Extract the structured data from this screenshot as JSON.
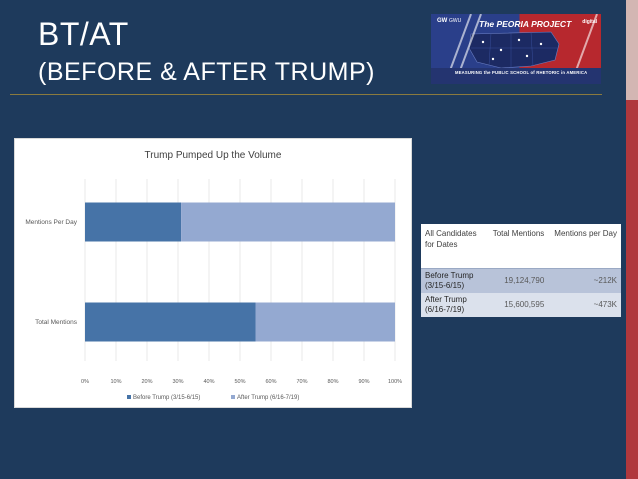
{
  "slide": {
    "title": "BT/AT",
    "subtitle": "(BEFORE & AFTER TRUMP)"
  },
  "logo": {
    "gw_label": "GW",
    "gw_sub": "GWU",
    "project_name": "The PEORIA PROJECT",
    "partner": "digital",
    "tagline": "MEASURING the PUBLIC SCHOOL of RHETORIC in AMERICA"
  },
  "chart_data": {
    "type": "bar",
    "orientation": "horizontal",
    "stacked": true,
    "percent": true,
    "title": "Trump Pumped Up the Volume",
    "categories": [
      "Mentions Per Day",
      "Total Mentions"
    ],
    "series": [
      {
        "name": "Before Trump (3/15-6/15)",
        "color": "#4673a7",
        "values": [
          31,
          55
        ]
      },
      {
        "name": "After Trump (6/16-7/19)",
        "color": "#94a9d1",
        "values": [
          69,
          45
        ]
      }
    ],
    "xlim": [
      0,
      100
    ],
    "xticks": [
      "0%",
      "10%",
      "20%",
      "30%",
      "40%",
      "50%",
      "60%",
      "70%",
      "80%",
      "90%",
      "100%"
    ],
    "legend_position": "bottom",
    "grid": true
  },
  "table": {
    "headers": [
      "All Candidates for Dates",
      "Total Mentions",
      "Mentions per Day"
    ],
    "rows": [
      [
        "Before Trump (3/15-6/15)",
        "19,124,790",
        "~212K"
      ],
      [
        "After Trump (6/16-7/19)",
        "15,600,595",
        "~473K"
      ]
    ]
  },
  "colors": {
    "background": "#1e3a5c",
    "rule": "#8a7a3e",
    "accent_red": "#b0383d"
  }
}
